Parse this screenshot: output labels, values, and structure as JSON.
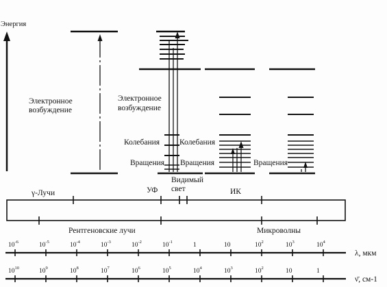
{
  "energy_axis_label": "Энергия",
  "col1": {
    "transition_label_line1": "Электронное",
    "transition_label_line2": "возбуждение"
  },
  "col2": {
    "transition_label_line1": "Электронное",
    "transition_label_line2": "возбуждение",
    "vibration_label": "Колебания",
    "rotation_label": "Вращения",
    "visible_label_line1": "Видимый",
    "visible_label_line2": "свет"
  },
  "col3": {
    "vibration_label": "Колебания",
    "rotation_label": "Вращения"
  },
  "col4": {
    "rotation_label": "Вращения"
  },
  "bands": {
    "gamma": "γ-Лучи",
    "uv": "УФ",
    "ir": "ИК",
    "xray": "Рентгеновские лучи",
    "microwave": "Микроволны"
  },
  "wavelength_scale": {
    "label": "λ, мкм",
    "ticks": [
      {
        "base": "10",
        "exp": "-6"
      },
      {
        "base": "10",
        "exp": "-5"
      },
      {
        "base": "10",
        "exp": "-4"
      },
      {
        "base": "10",
        "exp": "-3"
      },
      {
        "base": "10",
        "exp": "-2"
      },
      {
        "base": "10",
        "exp": "-1"
      },
      {
        "base": "1",
        "exp": ""
      },
      {
        "base": "10",
        "exp": ""
      },
      {
        "base": "10",
        "exp": "2"
      },
      {
        "base": "10",
        "exp": "3"
      },
      {
        "base": "10",
        "exp": "4"
      }
    ]
  },
  "wavenumber_scale": {
    "label": "ν̄, см-1",
    "ticks": [
      {
        "base": "10",
        "exp": "10"
      },
      {
        "base": "10",
        "exp": "9"
      },
      {
        "base": "10",
        "exp": "8"
      },
      {
        "base": "10",
        "exp": "7"
      },
      {
        "base": "10",
        "exp": "6"
      },
      {
        "base": "10",
        "exp": "5"
      },
      {
        "base": "10",
        "exp": "4"
      },
      {
        "base": "10",
        "exp": "3"
      },
      {
        "base": "10",
        "exp": "2"
      },
      {
        "base": "10",
        "exp": ""
      },
      {
        "base": "1",
        "exp": ""
      }
    ]
  }
}
